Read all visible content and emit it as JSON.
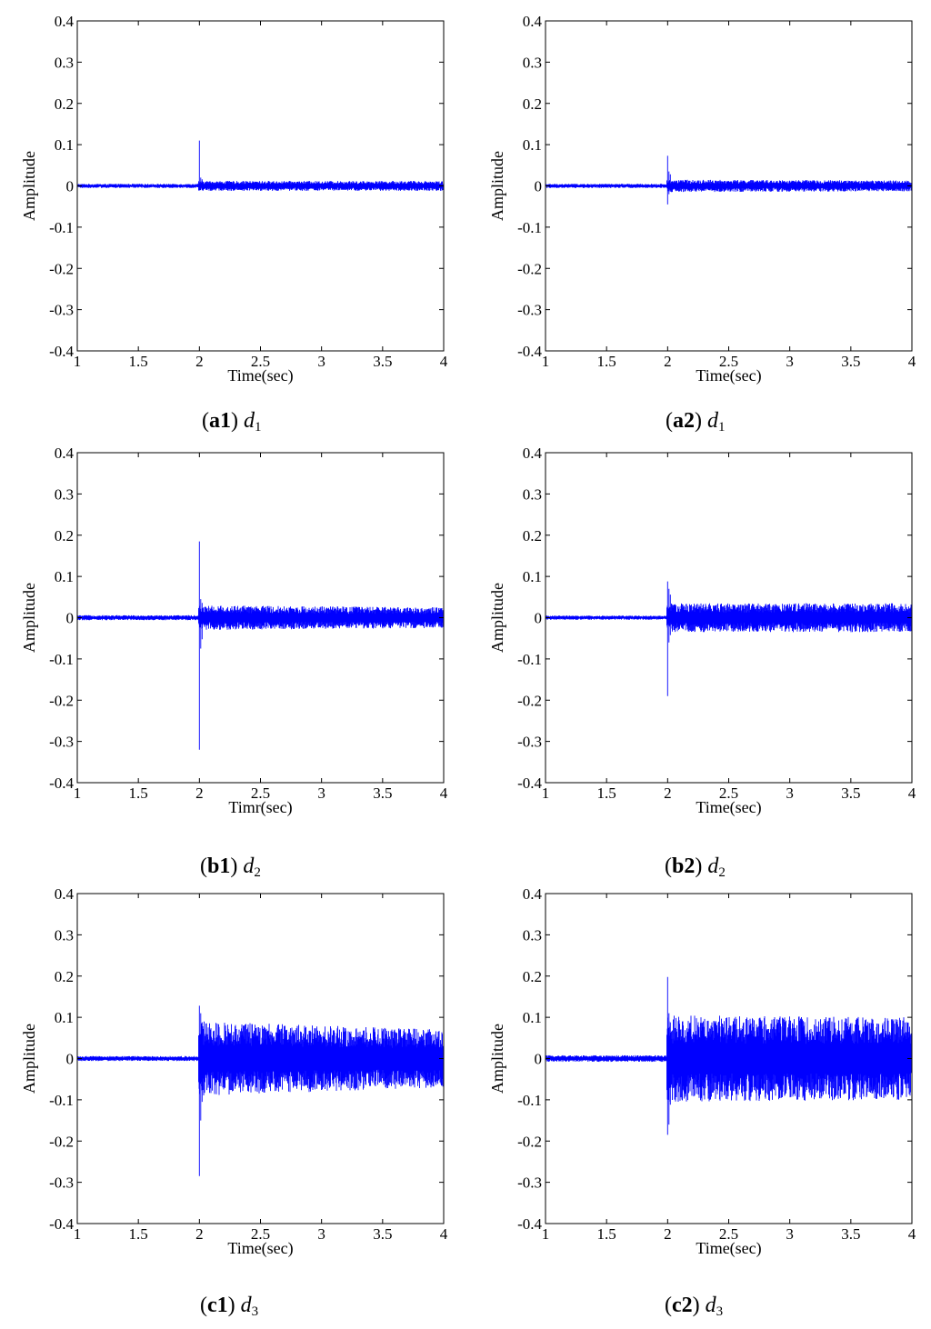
{
  "chart_data": [
    {
      "id": "a1",
      "type": "line",
      "caption": {
        "prefix": "(",
        "bold": "a1",
        "suffix": ") ",
        "var": "d",
        "sub": "1"
      },
      "xlabel": "Time(sec)",
      "ylabel": "Amplitude",
      "xlim": [
        1,
        4
      ],
      "ylim": [
        -0.4,
        0.4
      ],
      "xticks": [
        "1",
        "1.5",
        "2",
        "2.5",
        "3",
        "3.5",
        "4"
      ],
      "yticks": [
        "0.4",
        "0.3",
        "0.2",
        "0.1",
        "0",
        "-0.1",
        "-0.2",
        "-0.3",
        "-0.4"
      ],
      "grid": false,
      "color": "#0000ff",
      "signal": {
        "event_time": 2.0,
        "pre_amp": 0.005,
        "post_amp": 0.012,
        "post_amp_end": 0.012,
        "spike_max": 0.11,
        "spike_min": -0.01,
        "secondary_max": 0.02,
        "secondary_min": -0.01
      }
    },
    {
      "id": "a2",
      "type": "line",
      "caption": {
        "prefix": "(",
        "bold": "a2",
        "suffix": ") ",
        "var": "d",
        "sub": "1"
      },
      "xlabel": "Time(sec)",
      "ylabel": "Amplitude",
      "xlim": [
        1,
        4
      ],
      "ylim": [
        -0.4,
        0.4
      ],
      "xticks": [
        "1",
        "1.5",
        "2",
        "2.5",
        "3",
        "3.5",
        "4"
      ],
      "yticks": [
        "0.4",
        "0.3",
        "0.2",
        "0.1",
        "0",
        "-0.1",
        "-0.2",
        "-0.3",
        "-0.4"
      ],
      "grid": false,
      "color": "#0000ff",
      "signal": {
        "event_time": 2.0,
        "pre_amp": 0.005,
        "post_amp": 0.015,
        "post_amp_end": 0.013,
        "spike_max": 0.073,
        "spike_min": -0.045,
        "secondary_max": 0.035,
        "secondary_min": -0.02
      }
    },
    {
      "id": "b1",
      "type": "line",
      "caption": {
        "prefix": "(",
        "bold": "b1",
        "suffix": ") ",
        "var": "d",
        "sub": "2"
      },
      "xlabel": "Timr(sec)",
      "ylabel": "Amplitude",
      "xlim": [
        1,
        4
      ],
      "ylim": [
        -0.4,
        0.4
      ],
      "xticks": [
        "1",
        "1.5",
        "2",
        "2.5",
        "3",
        "3.5",
        "4"
      ],
      "yticks": [
        "0.4",
        "0.3",
        "0.2",
        "0.1",
        "0",
        "-0.1",
        "-0.2",
        "-0.3",
        "-0.4"
      ],
      "grid": false,
      "color": "#0000ff",
      "signal": {
        "event_time": 2.0,
        "pre_amp": 0.006,
        "post_amp": 0.03,
        "post_amp_end": 0.025,
        "spike_max": 0.185,
        "spike_min": -0.32,
        "secondary_max": 0.045,
        "secondary_min": -0.075
      }
    },
    {
      "id": "b2",
      "type": "line",
      "caption": {
        "prefix": "(",
        "bold": "b2",
        "suffix": ") ",
        "var": "d",
        "sub": "2"
      },
      "xlabel": "Time(sec)",
      "ylabel": "Amplitude",
      "xlim": [
        1,
        4
      ],
      "ylim": [
        -0.4,
        0.4
      ],
      "xticks": [
        "1",
        "1.5",
        "2",
        "2.5",
        "3",
        "3.5",
        "4"
      ],
      "yticks": [
        "0.4",
        "0.3",
        "0.2",
        "0.1",
        "0",
        "-0.1",
        "-0.2",
        "-0.3",
        "-0.4"
      ],
      "grid": false,
      "color": "#0000ff",
      "signal": {
        "event_time": 2.0,
        "pre_amp": 0.005,
        "post_amp": 0.035,
        "post_amp_end": 0.035,
        "spike_max": 0.088,
        "spike_min": -0.19,
        "secondary_max": 0.07,
        "secondary_min": -0.06
      }
    },
    {
      "id": "c1",
      "type": "line",
      "caption": {
        "prefix": "(",
        "bold": "c1",
        "suffix": ") ",
        "var": "d",
        "sub": "3"
      },
      "xlabel": "Time(sec)",
      "ylabel": "Amplitude",
      "xlim": [
        1,
        4
      ],
      "ylim": [
        -0.4,
        0.4
      ],
      "xticks": [
        "1",
        "1.5",
        "2",
        "2.5",
        "3",
        "3.5",
        "4"
      ],
      "yticks": [
        "0.4",
        "0.3",
        "0.2",
        "0.1",
        "0",
        "-0.1",
        "-0.2",
        "-0.3",
        "-0.4"
      ],
      "grid": false,
      "color": "#0000ff",
      "signal": {
        "event_time": 2.0,
        "pre_amp": 0.006,
        "post_amp": 0.09,
        "post_amp_end": 0.07,
        "spike_max": 0.128,
        "spike_min": -0.285,
        "secondary_max": 0.11,
        "secondary_min": -0.15
      }
    },
    {
      "id": "c2",
      "type": "line",
      "caption": {
        "prefix": "(",
        "bold": "c2",
        "suffix": ") ",
        "var": "d",
        "sub": "3"
      },
      "xlabel": "Time(sec)",
      "ylabel": "Amplitude",
      "xlim": [
        1,
        4
      ],
      "ylim": [
        -0.4,
        0.4
      ],
      "xticks": [
        "1",
        "1.5",
        "2",
        "2.5",
        "3",
        "3.5",
        "4"
      ],
      "yticks": [
        "0.4",
        "0.3",
        "0.2",
        "0.1",
        "0",
        "-0.1",
        "-0.2",
        "-0.3",
        "-0.4"
      ],
      "grid": false,
      "color": "#0000ff",
      "signal": {
        "event_time": 2.0,
        "pre_amp": 0.008,
        "post_amp": 0.105,
        "post_amp_end": 0.1,
        "spike_max": 0.198,
        "spike_min": -0.185,
        "secondary_max": 0.11,
        "secondary_min": -0.16
      }
    }
  ]
}
